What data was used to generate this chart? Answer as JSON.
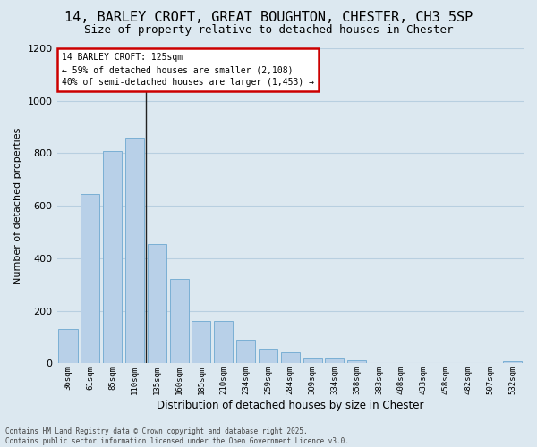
{
  "title": "14, BARLEY CROFT, GREAT BOUGHTON, CHESTER, CH3 5SP",
  "subtitle": "Size of property relative to detached houses in Chester",
  "xlabel": "Distribution of detached houses by size in Chester",
  "ylabel": "Number of detached properties",
  "categories": [
    "36sqm",
    "61sqm",
    "85sqm",
    "110sqm",
    "135sqm",
    "160sqm",
    "185sqm",
    "210sqm",
    "234sqm",
    "259sqm",
    "284sqm",
    "309sqm",
    "334sqm",
    "358sqm",
    "383sqm",
    "408sqm",
    "433sqm",
    "458sqm",
    "482sqm",
    "507sqm",
    "532sqm"
  ],
  "values": [
    130,
    645,
    810,
    860,
    455,
    320,
    160,
    160,
    90,
    55,
    42,
    18,
    18,
    12,
    0,
    0,
    0,
    0,
    0,
    0,
    8
  ],
  "bar_color": "#b8d0e8",
  "bar_edge_color": "#7aafd4",
  "annotation_text_line1": "14 BARLEY CROFT: 125sqm",
  "annotation_text_line2": "← 59% of detached houses are smaller (2,108)",
  "annotation_text_line3": "40% of semi-detached houses are larger (1,453) →",
  "annotation_box_facecolor": "#ffffff",
  "annotation_box_edgecolor": "#cc0000",
  "vline_color": "#222222",
  "ylim": [
    0,
    1200
  ],
  "yticks": [
    0,
    200,
    400,
    600,
    800,
    1000,
    1200
  ],
  "grid_color": "#b8cfe0",
  "bg_color": "#dce8f0",
  "fig_bg_color": "#dce8f0",
  "title_fontsize": 11,
  "subtitle_fontsize": 9,
  "footer_line1": "Contains HM Land Registry data © Crown copyright and database right 2025.",
  "footer_line2": "Contains public sector information licensed under the Open Government Licence v3.0."
}
